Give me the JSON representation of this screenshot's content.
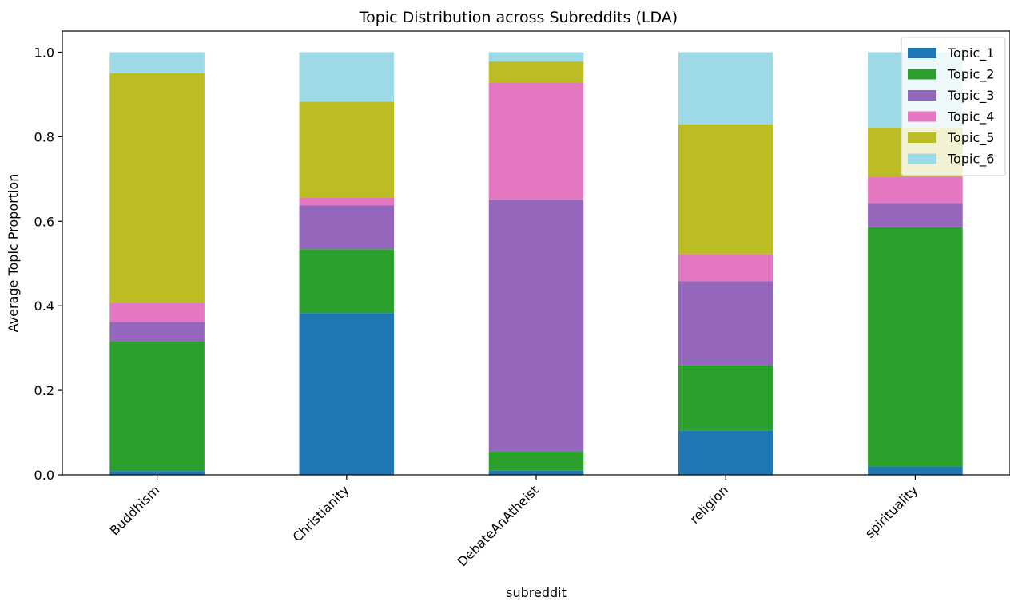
{
  "chart_data": {
    "type": "bar",
    "stacked": true,
    "title": "Topic Distribution across Subreddits (LDA)",
    "xlabel": "subreddit",
    "ylabel": "Average Topic Proportion",
    "ylim": [
      0,
      1.05
    ],
    "yticks": [
      0.0,
      0.2,
      0.4,
      0.6,
      0.8,
      1.0
    ],
    "ytick_labels": [
      "0.0",
      "0.2",
      "0.4",
      "0.6",
      "0.8",
      "1.0"
    ],
    "grid": false,
    "legend_position": "top-right",
    "categories": [
      "Buddhism",
      "Christianity",
      "DebateAnAtheist",
      "religion",
      "spirituality"
    ],
    "series": [
      {
        "name": "Topic_1",
        "color": "#1f77b4",
        "values": [
          0.009,
          0.383,
          0.01,
          0.104,
          0.02
        ]
      },
      {
        "name": "Topic_2",
        "color": "#2ca02c",
        "values": [
          0.308,
          0.151,
          0.046,
          0.156,
          0.566
        ]
      },
      {
        "name": "Topic_3",
        "color": "#9467bd",
        "values": [
          0.045,
          0.104,
          0.595,
          0.198,
          0.057
        ]
      },
      {
        "name": "Topic_4",
        "color": "#e377c2",
        "values": [
          0.045,
          0.019,
          0.278,
          0.064,
          0.063
        ]
      },
      {
        "name": "Topic_5",
        "color": "#bcbd22",
        "values": [
          0.543,
          0.226,
          0.049,
          0.307,
          0.116
        ]
      },
      {
        "name": "Topic_6",
        "color": "#9edae5",
        "values": [
          0.05,
          0.117,
          0.022,
          0.171,
          0.178
        ]
      }
    ]
  }
}
